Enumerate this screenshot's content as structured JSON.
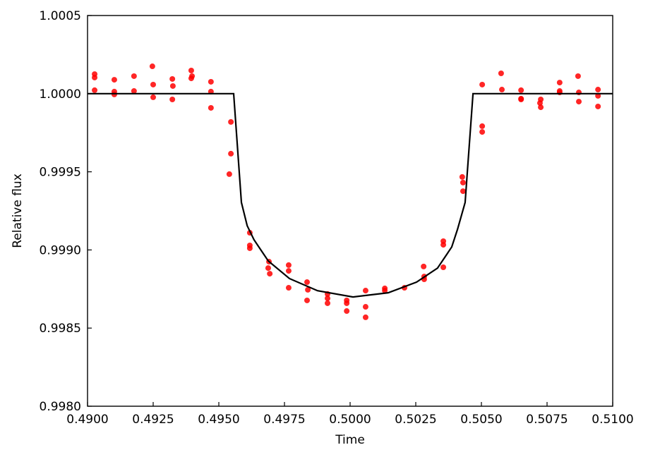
{
  "chart_data": {
    "type": "scatter",
    "x_label": "Time",
    "y_label": "Relative flux",
    "xlim": [
      0.49,
      0.51
    ],
    "ylim": [
      0.998,
      1.0005
    ],
    "xticks": [
      {
        "value": 0.49,
        "label": "0.4900"
      },
      0.4925,
      {
        "value": 0.495,
        "label": "0.4950"
      },
      0.4975,
      {
        "value": 0.5,
        "label": "0.5000"
      },
      0.5025,
      {
        "value": 0.505,
        "label": "0.5050"
      },
      0.5075,
      {
        "value": 0.51,
        "label": "0.5100"
      }
    ],
    "yticks": [
      {
        "value": 0.998,
        "label": "0.9980"
      },
      0.9985,
      {
        "value": 0.999,
        "label": "0.9990"
      },
      0.9995,
      {
        "value": 1.0,
        "label": "1.0000"
      },
      1.0005
    ],
    "series": [
      {
        "type": "scatter",
        "color": "#ff0000",
        "x": [
          0.49027,
          0.49027,
          0.49027,
          0.49102,
          0.49102,
          0.49102,
          0.49177,
          0.49177,
          0.49247,
          0.4925,
          0.4925,
          0.49323,
          0.49325,
          0.49323,
          0.49395,
          0.49398,
          0.49395,
          0.4947,
          0.4947,
          0.4947,
          0.49546,
          0.49546,
          0.4954,
          0.49618,
          0.49618,
          0.49618,
          0.49691,
          0.49688,
          0.49694,
          0.49766,
          0.49766,
          0.49766,
          0.49836,
          0.49839,
          0.49836,
          0.49914,
          0.49914,
          0.49914,
          0.49987,
          0.49987,
          0.49987,
          0.50059,
          0.50059,
          0.50059,
          0.50132,
          0.50132,
          0.50207,
          0.5028,
          0.50282,
          0.50282,
          0.50355,
          0.50355,
          0.50355,
          0.50427,
          0.5043,
          0.5043,
          0.50503,
          0.50503,
          0.50503,
          0.50575,
          0.50578,
          0.50651,
          0.50651,
          0.50651,
          0.50726,
          0.50723,
          0.50726,
          0.50798,
          0.50798,
          0.50798,
          0.50868,
          0.50871,
          0.50871,
          0.50944,
          0.50944,
          0.50944
        ],
        "values": [
          1.000125,
          1.000103,
          1.000022,
          1.000089,
          1.000013,
          0.999995,
          1.000112,
          1.000017,
          1.000175,
          1.000058,
          0.999977,
          1.000094,
          1.000049,
          0.999963,
          1.000148,
          1.000112,
          1.000098,
          1.000076,
          1.000013,
          0.999909,
          0.999819,
          0.999616,
          0.999485,
          0.99911,
          0.999029,
          0.999011,
          0.998925,
          0.998884,
          0.998848,
          0.998903,
          0.998866,
          0.998758,
          0.998794,
          0.998745,
          0.998677,
          0.998718,
          0.99869,
          0.998659,
          0.998677,
          0.998659,
          0.998609,
          0.99874,
          0.998636,
          0.998569,
          0.998754,
          0.99874,
          0.998758,
          0.998894,
          0.99883,
          0.998812,
          0.999056,
          0.999033,
          0.998889,
          0.999467,
          0.999431,
          0.999376,
          1.000058,
          0.999792,
          0.999755,
          1.00013,
          1.000026,
          1.000022,
          0.999968,
          0.999963,
          0.999963,
          0.99994,
          0.999913,
          1.000071,
          1.000017,
          1.000008,
          1.000112,
          1.000008,
          0.999949,
          1.000026,
          0.999986,
          0.999918
        ]
      },
      {
        "type": "line",
        "color": "#000000",
        "x": [
          0.49,
          0.495565,
          0.49586,
          0.49608,
          0.49634,
          0.49688,
          0.49769,
          0.49876,
          0.50011,
          0.50145,
          0.50253,
          0.50333,
          0.50387,
          0.50409,
          0.50438,
          0.50468,
          0.51
        ],
        "values": [
          1.0,
          1.0,
          0.999304,
          0.999155,
          0.999065,
          0.99893,
          0.998817,
          0.998739,
          0.998699,
          0.998726,
          0.998794,
          0.998884,
          0.999019,
          0.999132,
          0.999304,
          1.0,
          1.0
        ]
      }
    ]
  }
}
